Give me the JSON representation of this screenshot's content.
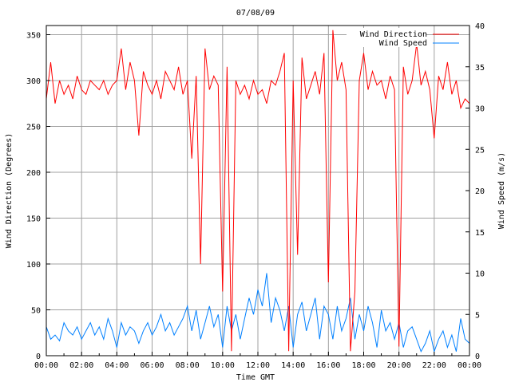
{
  "chart_data": {
    "type": "line",
    "title": "07/08/09",
    "xlabel": "Time GMT",
    "ylabel": "Wind Direction (Degrees)",
    "y2label": "Wind Speed (m/s)",
    "xlim": [
      0,
      24
    ],
    "ylim": [
      0,
      360
    ],
    "y2lim": [
      0,
      40
    ],
    "grid": true,
    "legend_position": "top-right",
    "x_ticks": [
      "00:00",
      "02:00",
      "04:00",
      "06:00",
      "08:00",
      "10:00",
      "12:00",
      "14:00",
      "16:00",
      "18:00",
      "20:00",
      "22:00",
      "00:00"
    ],
    "y_ticks": [
      0,
      50,
      100,
      150,
      200,
      250,
      300,
      350
    ],
    "y2_ticks": [
      0,
      5,
      10,
      15,
      20,
      25,
      30,
      35,
      40
    ],
    "x_step_hours": 0.25,
    "series": [
      {
        "name": "Wind Direction",
        "axis": "left",
        "color": "#ff0000",
        "values": [
          280,
          320,
          275,
          300,
          285,
          295,
          280,
          305,
          290,
          285,
          300,
          295,
          290,
          300,
          285,
          295,
          300,
          335,
          290,
          320,
          300,
          240,
          310,
          295,
          285,
          300,
          280,
          310,
          300,
          290,
          315,
          285,
          300,
          215,
          305,
          100,
          335,
          290,
          305,
          295,
          70,
          315,
          5,
          300,
          285,
          295,
          280,
          300,
          285,
          290,
          275,
          300,
          295,
          310,
          330,
          5,
          300,
          110,
          325,
          280,
          295,
          310,
          285,
          330,
          80,
          355,
          300,
          320,
          290,
          5,
          70,
          300,
          330,
          290,
          310,
          295,
          300,
          280,
          305,
          290,
          10,
          315,
          285,
          300,
          340,
          295,
          310,
          290,
          237,
          305,
          290,
          320,
          285,
          300,
          270,
          280,
          275
        ]
      },
      {
        "name": "Wind Speed",
        "axis": "right",
        "color": "#0080ff",
        "values": [
          3.5,
          2,
          2.5,
          1.8,
          4,
          3,
          2.5,
          3.5,
          2,
          3,
          4,
          2.5,
          3.5,
          2,
          4.5,
          3,
          1,
          4,
          2.5,
          3.5,
          3,
          1.5,
          3,
          4,
          2.5,
          3.5,
          5,
          3,
          4,
          2.5,
          3.5,
          4.5,
          6,
          3,
          5.5,
          2,
          4,
          6,
          3.5,
          5,
          1,
          6,
          3,
          5,
          2,
          4.5,
          7,
          5,
          8,
          6,
          10,
          4,
          7,
          5.5,
          3,
          6,
          1,
          5,
          6.5,
          3,
          5,
          7,
          2,
          6,
          5,
          2,
          6,
          3,
          4.5,
          7,
          2,
          5,
          3,
          6,
          4,
          1,
          5.5,
          3,
          4,
          2,
          4,
          1,
          3,
          3.5,
          2,
          0.5,
          1.5,
          3,
          0.5,
          2,
          3,
          1,
          2.5,
          0.5,
          4.5,
          2,
          1.5
        ]
      }
    ]
  }
}
